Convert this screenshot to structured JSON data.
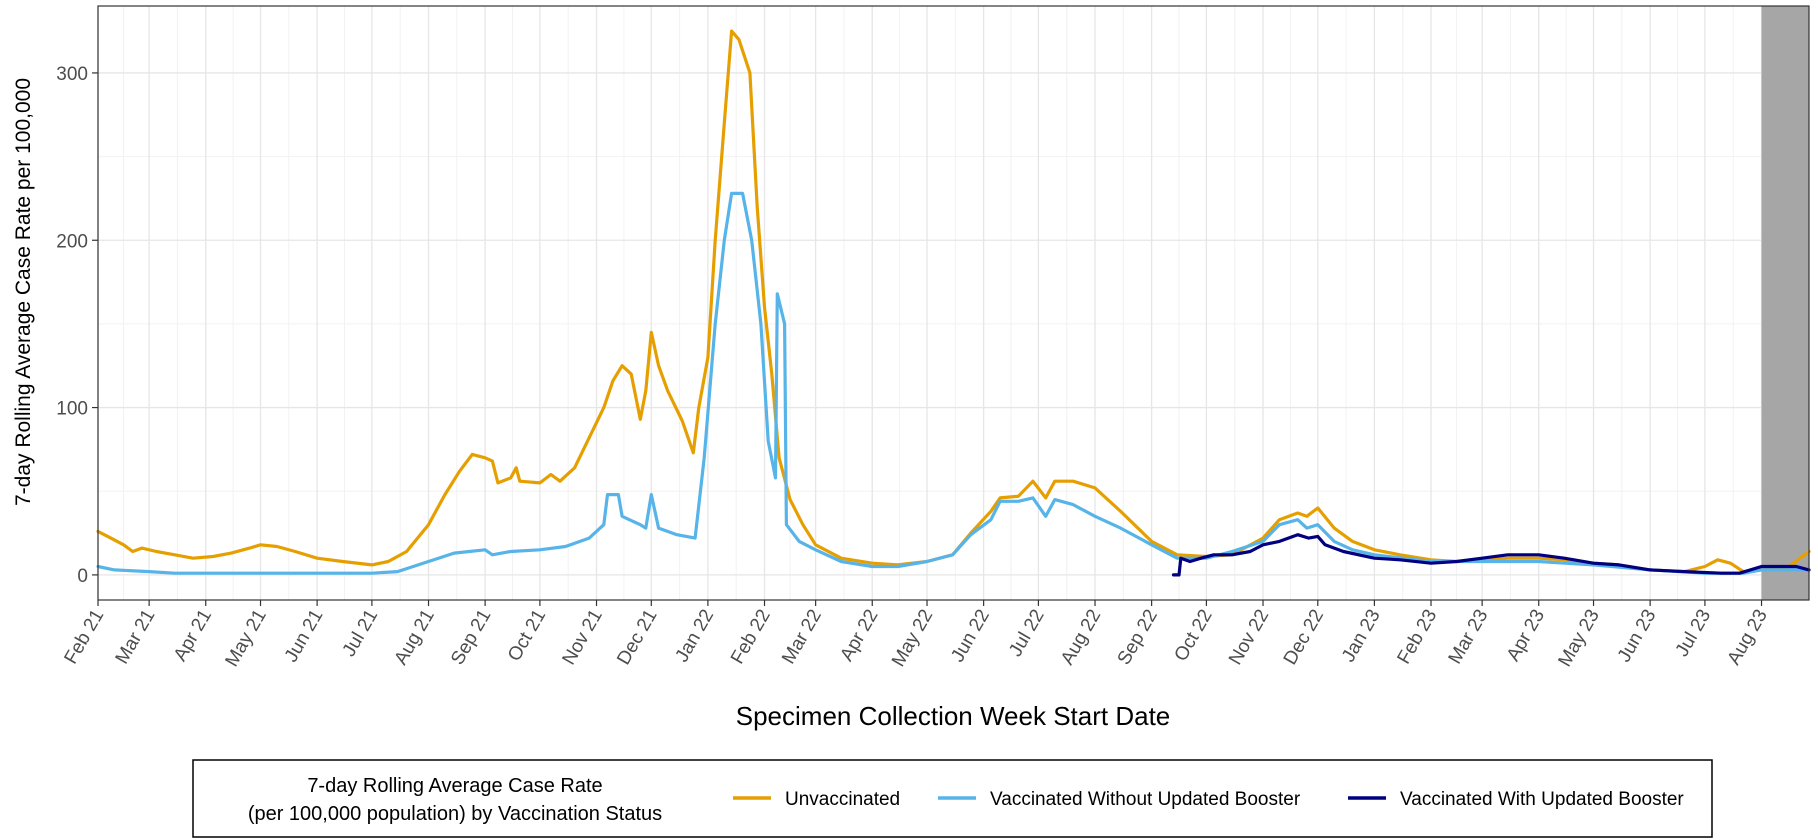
{
  "chart_data": {
    "type": "line",
    "title": "",
    "xlabel": "Specimen Collection Week Start Date",
    "ylabel": "7-day Rolling Average Case Rate per 100,000",
    "x_range": [
      "2021-02-01",
      "2023-08-27"
    ],
    "ylim": [
      -15,
      340
    ],
    "y_ticks": [
      0,
      100,
      200,
      300
    ],
    "grid": true,
    "shaded_region": {
      "start": "2023-08-01",
      "end": "2023-08-27",
      "color": "#a6a6a6"
    },
    "x_ticks": [
      {
        "date": "2021-02-01",
        "label": "Feb 21"
      },
      {
        "date": "2021-03-01",
        "label": "Mar 21"
      },
      {
        "date": "2021-04-01",
        "label": "Apr 21"
      },
      {
        "date": "2021-05-01",
        "label": "May 21"
      },
      {
        "date": "2021-06-01",
        "label": "Jun 21"
      },
      {
        "date": "2021-07-01",
        "label": "Jul 21"
      },
      {
        "date": "2021-08-01",
        "label": "Aug 21"
      },
      {
        "date": "2021-09-01",
        "label": "Sep 21"
      },
      {
        "date": "2021-10-01",
        "label": "Oct 21"
      },
      {
        "date": "2021-11-01",
        "label": "Nov 21"
      },
      {
        "date": "2021-12-01",
        "label": "Dec 21"
      },
      {
        "date": "2022-01-01",
        "label": "Jan 22"
      },
      {
        "date": "2022-02-01",
        "label": "Feb 22"
      },
      {
        "date": "2022-03-01",
        "label": "Mar 22"
      },
      {
        "date": "2022-04-01",
        "label": "Apr 22"
      },
      {
        "date": "2022-05-01",
        "label": "May 22"
      },
      {
        "date": "2022-06-01",
        "label": "Jun 22"
      },
      {
        "date": "2022-07-01",
        "label": "Jul 22"
      },
      {
        "date": "2022-08-01",
        "label": "Aug 22"
      },
      {
        "date": "2022-09-01",
        "label": "Sep 22"
      },
      {
        "date": "2022-10-01",
        "label": "Oct 22"
      },
      {
        "date": "2022-11-01",
        "label": "Nov 22"
      },
      {
        "date": "2022-12-01",
        "label": "Dec 22"
      },
      {
        "date": "2023-01-01",
        "label": "Jan 23"
      },
      {
        "date": "2023-02-01",
        "label": "Feb 23"
      },
      {
        "date": "2023-03-01",
        "label": "Mar 23"
      },
      {
        "date": "2023-04-01",
        "label": "Apr 23"
      },
      {
        "date": "2023-05-01",
        "label": "May 23"
      },
      {
        "date": "2023-06-01",
        "label": "Jun 23"
      },
      {
        "date": "2023-07-01",
        "label": "Jul 23"
      },
      {
        "date": "2023-08-01",
        "label": "Aug 23"
      }
    ],
    "legend": {
      "title_line1": "7-day Rolling Average Case Rate",
      "title_line2": "(per 100,000 population) by Vaccination Status",
      "position": "bottom"
    },
    "series": [
      {
        "name": "Unvaccinated",
        "color": "#E69F00",
        "points": [
          [
            "2021-02-01",
            26
          ],
          [
            "2021-02-08",
            22
          ],
          [
            "2021-02-15",
            18
          ],
          [
            "2021-02-20",
            14
          ],
          [
            "2021-02-25",
            16
          ],
          [
            "2021-03-05",
            14
          ],
          [
            "2021-03-15",
            12
          ],
          [
            "2021-03-25",
            10
          ],
          [
            "2021-04-05",
            11
          ],
          [
            "2021-04-15",
            13
          ],
          [
            "2021-04-25",
            16
          ],
          [
            "2021-05-01",
            18
          ],
          [
            "2021-05-10",
            17
          ],
          [
            "2021-05-20",
            14
          ],
          [
            "2021-06-01",
            10
          ],
          [
            "2021-06-15",
            8
          ],
          [
            "2021-07-01",
            6
          ],
          [
            "2021-07-10",
            8
          ],
          [
            "2021-07-20",
            14
          ],
          [
            "2021-08-01",
            30
          ],
          [
            "2021-08-10",
            48
          ],
          [
            "2021-08-18",
            62
          ],
          [
            "2021-08-25",
            72
          ],
          [
            "2021-09-01",
            70
          ],
          [
            "2021-09-05",
            68
          ],
          [
            "2021-09-08",
            55
          ],
          [
            "2021-09-15",
            58
          ],
          [
            "2021-09-18",
            64
          ],
          [
            "2021-09-20",
            56
          ],
          [
            "2021-10-01",
            55
          ],
          [
            "2021-10-07",
            60
          ],
          [
            "2021-10-12",
            56
          ],
          [
            "2021-10-20",
            64
          ],
          [
            "2021-10-28",
            82
          ],
          [
            "2021-11-05",
            100
          ],
          [
            "2021-11-10",
            116
          ],
          [
            "2021-11-15",
            125
          ],
          [
            "2021-11-20",
            120
          ],
          [
            "2021-11-25",
            93
          ],
          [
            "2021-11-28",
            110
          ],
          [
            "2021-12-01",
            145
          ],
          [
            "2021-12-05",
            125
          ],
          [
            "2021-12-10",
            110
          ],
          [
            "2021-12-18",
            92
          ],
          [
            "2021-12-24",
            73
          ],
          [
            "2021-12-27",
            100
          ],
          [
            "2022-01-01",
            130
          ],
          [
            "2022-01-05",
            200
          ],
          [
            "2022-01-10",
            270
          ],
          [
            "2022-01-14",
            325
          ],
          [
            "2022-01-18",
            320
          ],
          [
            "2022-01-24",
            300
          ],
          [
            "2022-01-28",
            220
          ],
          [
            "2022-02-01",
            160
          ],
          [
            "2022-02-05",
            120
          ],
          [
            "2022-02-09",
            70
          ],
          [
            "2022-02-15",
            45
          ],
          [
            "2022-02-22",
            30
          ],
          [
            "2022-03-01",
            18
          ],
          [
            "2022-03-15",
            10
          ],
          [
            "2022-04-01",
            7
          ],
          [
            "2022-04-15",
            6
          ],
          [
            "2022-05-01",
            8
          ],
          [
            "2022-05-15",
            12
          ],
          [
            "2022-05-25",
            25
          ],
          [
            "2022-06-05",
            38
          ],
          [
            "2022-06-10",
            46
          ],
          [
            "2022-06-20",
            47
          ],
          [
            "2022-06-28",
            56
          ],
          [
            "2022-07-05",
            46
          ],
          [
            "2022-07-10",
            56
          ],
          [
            "2022-07-20",
            56
          ],
          [
            "2022-08-01",
            52
          ],
          [
            "2022-08-15",
            38
          ],
          [
            "2022-09-01",
            20
          ],
          [
            "2022-09-15",
            12
          ],
          [
            "2022-10-01",
            11
          ],
          [
            "2022-10-15",
            12
          ],
          [
            "2022-11-01",
            22
          ],
          [
            "2022-11-10",
            33
          ],
          [
            "2022-11-20",
            37
          ],
          [
            "2022-11-25",
            35
          ],
          [
            "2022-12-01",
            40
          ],
          [
            "2022-12-10",
            28
          ],
          [
            "2022-12-20",
            20
          ],
          [
            "2023-01-01",
            15
          ],
          [
            "2023-01-15",
            12
          ],
          [
            "2023-02-01",
            9
          ],
          [
            "2023-02-15",
            8
          ],
          [
            "2023-03-01",
            9
          ],
          [
            "2023-03-15",
            10
          ],
          [
            "2023-04-01",
            10
          ],
          [
            "2023-04-15",
            9
          ],
          [
            "2023-05-01",
            7
          ],
          [
            "2023-05-15",
            6
          ],
          [
            "2023-06-01",
            3
          ],
          [
            "2023-06-20",
            2
          ],
          [
            "2023-07-01",
            5
          ],
          [
            "2023-07-08",
            9
          ],
          [
            "2023-07-15",
            7
          ],
          [
            "2023-07-22",
            2
          ],
          [
            "2023-08-01",
            3
          ],
          [
            "2023-08-15",
            4
          ],
          [
            "2023-08-27",
            14
          ]
        ]
      },
      {
        "name": "Vaccinated Without Updated Booster",
        "color": "#56B4E9",
        "points": [
          [
            "2021-02-01",
            5
          ],
          [
            "2021-02-10",
            3
          ],
          [
            "2021-03-01",
            2
          ],
          [
            "2021-03-15",
            1
          ],
          [
            "2021-05-01",
            1
          ],
          [
            "2021-07-01",
            1
          ],
          [
            "2021-07-15",
            2
          ],
          [
            "2021-08-01",
            8
          ],
          [
            "2021-08-15",
            13
          ],
          [
            "2021-09-01",
            15
          ],
          [
            "2021-09-05",
            12
          ],
          [
            "2021-09-15",
            14
          ],
          [
            "2021-10-01",
            15
          ],
          [
            "2021-10-15",
            17
          ],
          [
            "2021-10-28",
            22
          ],
          [
            "2021-11-05",
            30
          ],
          [
            "2021-11-07",
            48
          ],
          [
            "2021-11-13",
            48
          ],
          [
            "2021-11-15",
            35
          ],
          [
            "2021-11-25",
            30
          ],
          [
            "2021-11-28",
            28
          ],
          [
            "2021-12-01",
            48
          ],
          [
            "2021-12-05",
            28
          ],
          [
            "2021-12-15",
            24
          ],
          [
            "2021-12-25",
            22
          ],
          [
            "2021-12-30",
            70
          ],
          [
            "2022-01-05",
            150
          ],
          [
            "2022-01-10",
            200
          ],
          [
            "2022-01-14",
            228
          ],
          [
            "2022-01-20",
            228
          ],
          [
            "2022-01-25",
            200
          ],
          [
            "2022-01-30",
            150
          ],
          [
            "2022-02-03",
            80
          ],
          [
            "2022-02-07",
            58
          ],
          [
            "2022-02-08",
            168
          ],
          [
            "2022-02-12",
            150
          ],
          [
            "2022-02-13",
            30
          ],
          [
            "2022-02-20",
            20
          ],
          [
            "2022-03-01",
            15
          ],
          [
            "2022-03-15",
            8
          ],
          [
            "2022-04-01",
            5
          ],
          [
            "2022-04-15",
            5
          ],
          [
            "2022-05-01",
            8
          ],
          [
            "2022-05-15",
            12
          ],
          [
            "2022-05-25",
            24
          ],
          [
            "2022-06-05",
            33
          ],
          [
            "2022-06-10",
            44
          ],
          [
            "2022-06-20",
            44
          ],
          [
            "2022-06-28",
            46
          ],
          [
            "2022-07-05",
            35
          ],
          [
            "2022-07-10",
            45
          ],
          [
            "2022-07-20",
            42
          ],
          [
            "2022-08-01",
            35
          ],
          [
            "2022-08-15",
            28
          ],
          [
            "2022-09-01",
            18
          ],
          [
            "2022-09-15",
            10
          ],
          [
            "2022-10-01",
            10
          ],
          [
            "2022-10-15",
            14
          ],
          [
            "2022-11-01",
            20
          ],
          [
            "2022-11-10",
            30
          ],
          [
            "2022-11-20",
            33
          ],
          [
            "2022-11-25",
            28
          ],
          [
            "2022-12-01",
            30
          ],
          [
            "2022-12-10",
            20
          ],
          [
            "2022-12-20",
            15
          ],
          [
            "2023-01-01",
            12
          ],
          [
            "2023-02-01",
            8
          ],
          [
            "2023-03-01",
            8
          ],
          [
            "2023-04-01",
            8
          ],
          [
            "2023-05-01",
            6
          ],
          [
            "2023-06-01",
            3
          ],
          [
            "2023-07-01",
            1
          ],
          [
            "2023-07-22",
            1
          ],
          [
            "2023-08-01",
            3
          ],
          [
            "2023-08-27",
            3
          ]
        ]
      },
      {
        "name": "Vaccinated With Updated Booster",
        "color": "#000080",
        "points": [
          [
            "2022-09-13",
            0
          ],
          [
            "2022-09-16",
            0
          ],
          [
            "2022-09-17",
            10
          ],
          [
            "2022-09-22",
            8
          ],
          [
            "2022-09-28",
            10
          ],
          [
            "2022-10-05",
            12
          ],
          [
            "2022-10-15",
            12
          ],
          [
            "2022-10-25",
            14
          ],
          [
            "2022-11-01",
            18
          ],
          [
            "2022-11-10",
            20
          ],
          [
            "2022-11-20",
            24
          ],
          [
            "2022-11-26",
            22
          ],
          [
            "2022-12-01",
            23
          ],
          [
            "2022-12-05",
            18
          ],
          [
            "2022-12-15",
            14
          ],
          [
            "2023-01-01",
            10
          ],
          [
            "2023-01-15",
            9
          ],
          [
            "2023-02-01",
            7
          ],
          [
            "2023-02-15",
            8
          ],
          [
            "2023-03-01",
            10
          ],
          [
            "2023-03-15",
            12
          ],
          [
            "2023-04-01",
            12
          ],
          [
            "2023-04-15",
            10
          ],
          [
            "2023-05-01",
            7
          ],
          [
            "2023-05-15",
            6
          ],
          [
            "2023-06-01",
            3
          ],
          [
            "2023-06-20",
            2
          ],
          [
            "2023-07-10",
            1
          ],
          [
            "2023-07-20",
            1
          ],
          [
            "2023-08-01",
            5
          ],
          [
            "2023-08-20",
            5
          ],
          [
            "2023-08-27",
            3
          ]
        ]
      }
    ]
  }
}
